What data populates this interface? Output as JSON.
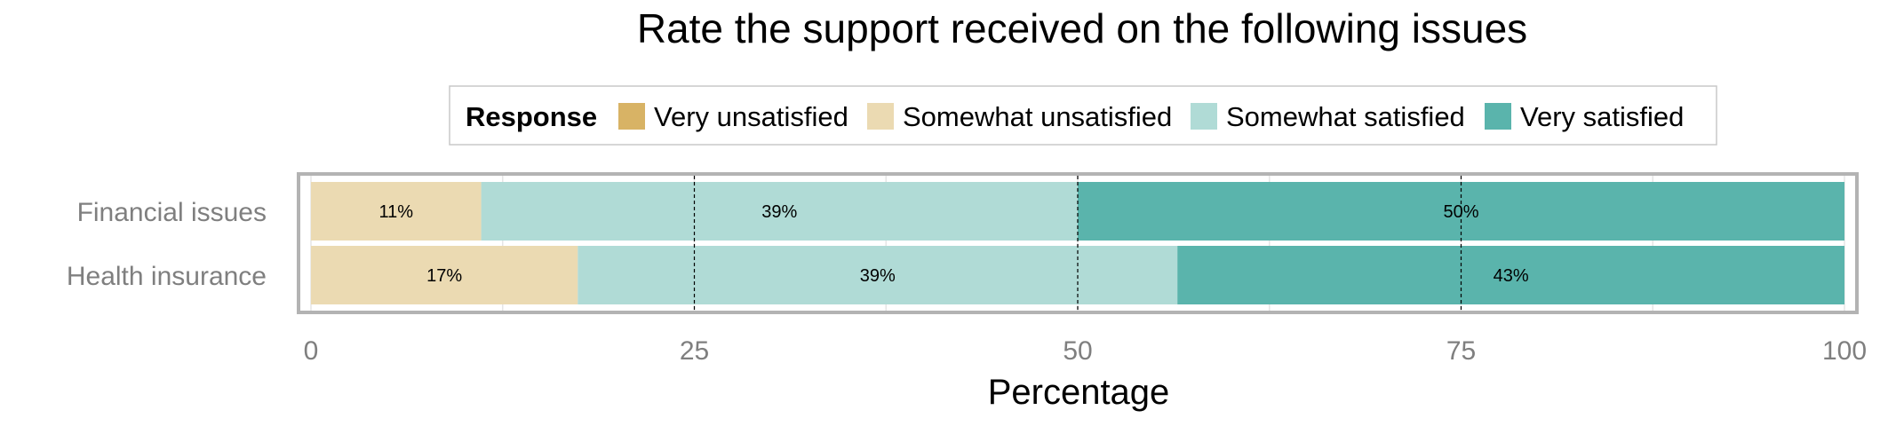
{
  "chart_data": {
    "type": "bar",
    "orientation": "horizontal",
    "stacked": true,
    "title": "Rate the support received on the following issues",
    "xlabel": "Percentage",
    "ylabel": "",
    "xlim": [
      0,
      100
    ],
    "xticks": [
      0,
      25,
      50,
      75,
      100
    ],
    "legend": {
      "title": "Response",
      "position": "top",
      "entries": [
        {
          "label": "Very unsatisfied",
          "color": "#d8b365"
        },
        {
          "label": "Somewhat unsatisfied",
          "color": "#ebdab2"
        },
        {
          "label": "Somewhat satisfied",
          "color": "#b0dbd6"
        },
        {
          "label": "Very satisfied",
          "color": "#5ab4ac"
        }
      ]
    },
    "categories": [
      "Financial issues",
      "Health insurance"
    ],
    "series": [
      {
        "name": "Very unsatisfied",
        "color": "#d8b365",
        "values": [
          0,
          0
        ]
      },
      {
        "name": "Somewhat unsatisfied",
        "color": "#ebdab2",
        "values": [
          11.1,
          17.4
        ]
      },
      {
        "name": "Somewhat satisfied",
        "color": "#b0dbd6",
        "values": [
          38.9,
          39.1
        ]
      },
      {
        "name": "Very satisfied",
        "color": "#5ab4ac",
        "values": [
          50.0,
          43.5
        ]
      }
    ],
    "bar_labels": [
      {
        "category": "Financial issues",
        "labels": [
          "11%",
          "39%",
          "50%"
        ]
      },
      {
        "category": "Health insurance",
        "labels": [
          "17%",
          "39%",
          "43%"
        ]
      }
    ],
    "reference_lines": [
      25,
      50,
      75
    ],
    "grid": true
  }
}
